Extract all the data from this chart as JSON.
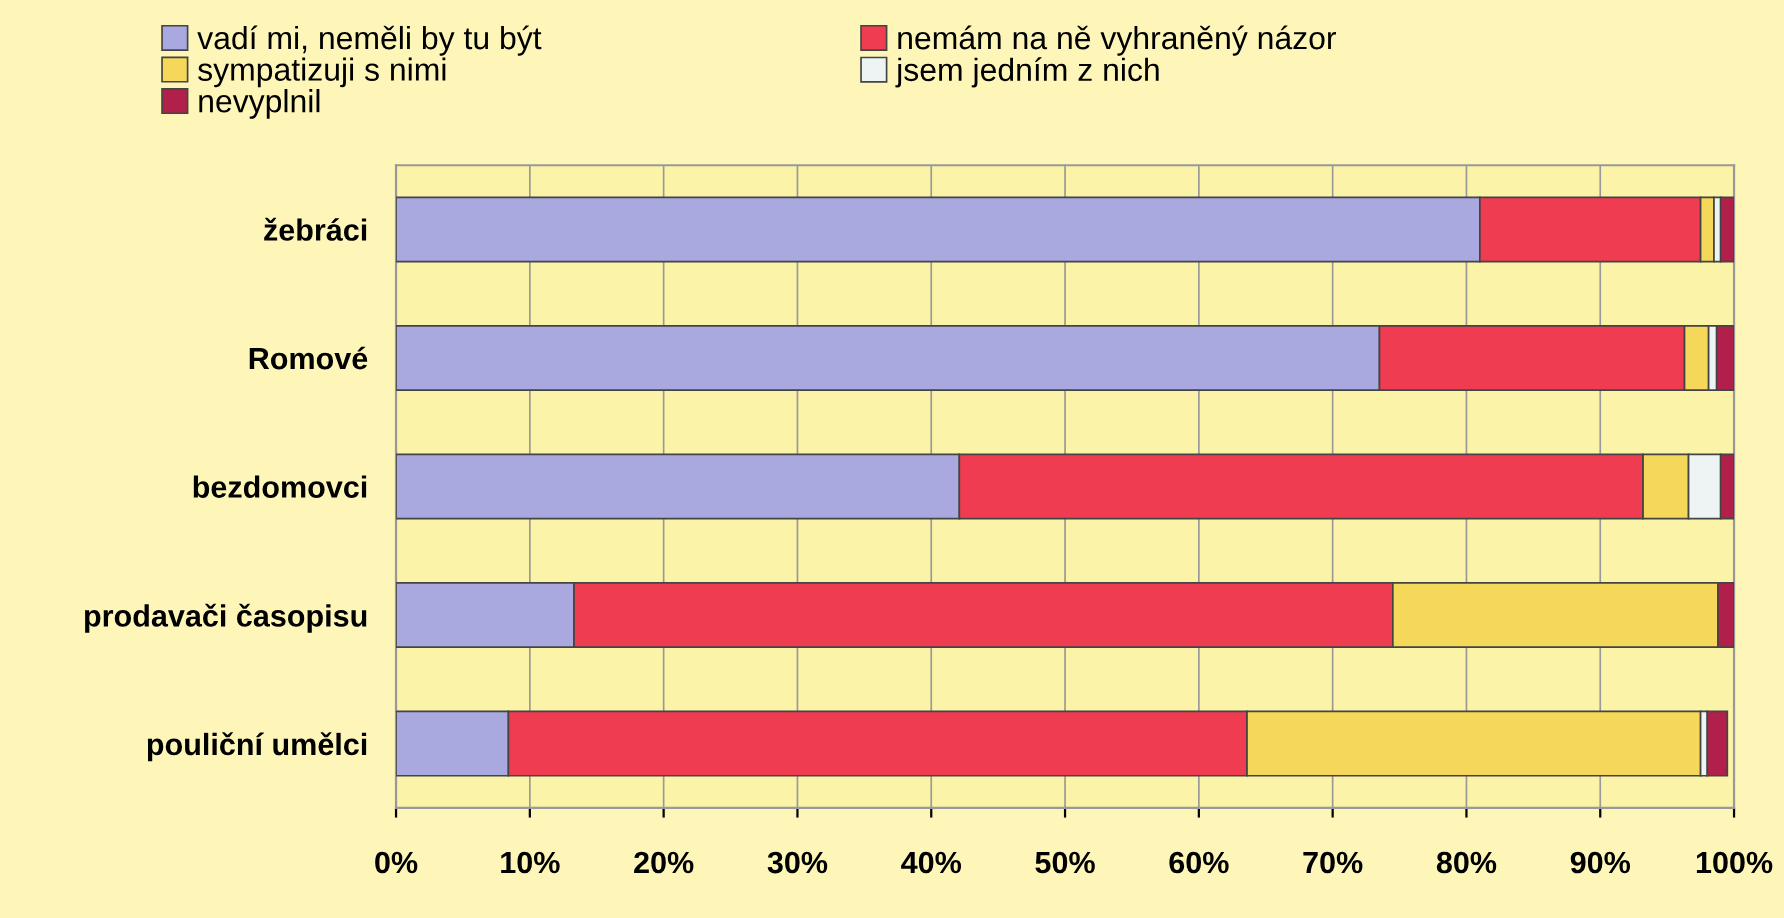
{
  "chart_data": {
    "type": "bar",
    "orientation": "horizontal",
    "stacked": true,
    "categories": [
      "žebráci",
      "Romové",
      "bezdomovci",
      "prodavači časopisu",
      "pouliční umělci"
    ],
    "series": [
      {
        "name": "vadí mi, neměli by tu být",
        "color": "#a9a9e0",
        "values": [
          81,
          73.5,
          42.1,
          13.3,
          8.4
        ]
      },
      {
        "name": "nemám na ně vyhraněný názor",
        "color": "#f03c50",
        "values": [
          16.5,
          22.8,
          51.1,
          61.2,
          55.2
        ]
      },
      {
        "name": "sympatizuji s nimi",
        "color": "#f5d85a",
        "values": [
          1,
          1.8,
          3.4,
          24.3,
          33.9
        ]
      },
      {
        "name": "jsem jedním z nich",
        "color": "#eef4f4",
        "values": [
          0.5,
          0.6,
          2.4,
          0,
          0.5
        ]
      },
      {
        "name": "nevyplnil",
        "color": "#b0204a",
        "values": [
          1,
          1.3,
          1,
          1.2,
          1.5
        ]
      }
    ],
    "xlim": [
      0,
      100
    ],
    "xticks": [
      {
        "value": 0,
        "label": "0%"
      },
      {
        "value": 10,
        "label": "10%"
      },
      {
        "value": 20,
        "label": "20%"
      },
      {
        "value": 30,
        "label": "30%"
      },
      {
        "value": 40,
        "label": "40%"
      },
      {
        "value": 50,
        "label": "50%"
      },
      {
        "value": 60,
        "label": "60%"
      },
      {
        "value": 70,
        "label": "70%"
      },
      {
        "value": 80,
        "label": "80%"
      },
      {
        "value": 90,
        "label": "90%"
      },
      {
        "value": 100,
        "label": "100%"
      }
    ],
    "grid": "x",
    "legend": "top"
  }
}
